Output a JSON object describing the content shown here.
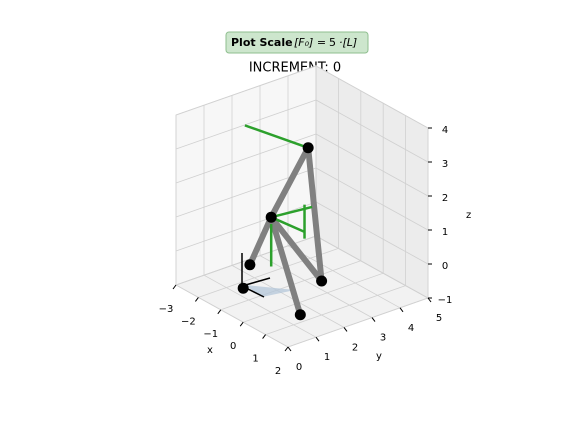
{
  "chart_data": {
    "type": "structure3d",
    "scale_label": "Plot Scale",
    "scale_symbol": "[F₀] =",
    "scale": 5,
    "scale_unit": "·[L]",
    "title": "INCREMENT: 0",
    "xlabel": "x",
    "ylabel": "y",
    "zlabel": "z",
    "xlim": [
      -3,
      2
    ],
    "ylim": [
      0,
      5
    ],
    "zlim": [
      -1,
      4
    ],
    "xticks": [
      {
        "value": -3,
        "label": "−3"
      },
      {
        "value": -2,
        "label": "−2"
      },
      {
        "value": -1,
        "label": "−1"
      },
      0,
      1,
      2
    ],
    "yticks": [
      0,
      1,
      2,
      3,
      4,
      5
    ],
    "zticks": [
      {
        "value": -1,
        "label": "−1"
      },
      0,
      1,
      2,
      3,
      4
    ],
    "grid": true,
    "nodes": {
      "x": [
        0,
        0.3,
        1,
        2.3,
        0,
        0.4
      ],
      "y": [
        0,
        0,
        2,
        0.2,
        1,
        2
      ],
      "z": [
        0,
        0.8,
        0,
        0,
        1.8,
        3.7
      ]
    },
    "members": [
      [
        5,
        4
      ],
      [
        4,
        1
      ],
      [
        4,
        2
      ],
      [
        4,
        3
      ],
      [
        5,
        2
      ]
    ],
    "member_color": "#808080",
    "loads": [
      {
        "start": [
          0.4,
          2,
          3.7
        ],
        "end": [
          -1.8,
          1.5,
          3.7
        ]
      },
      {
        "start": [
          0,
          1,
          1.8
        ],
        "end": [
          0.2,
          2.3,
          1.8
        ]
      },
      {
        "start": [
          0,
          1,
          1.8
        ],
        "end": [
          1.3,
          1.15,
          1.8
        ]
      },
      {
        "start": [
          1.3,
          1.15,
          1.6
        ],
        "end": [
          1.3,
          1.15,
          2.6
        ]
      },
      {
        "start": [
          0,
          1,
          1.6
        ],
        "end": [
          0,
          1,
          0.35
        ]
      }
    ],
    "load_color": "#2ca02c",
    "node_color": "#000000"
  }
}
